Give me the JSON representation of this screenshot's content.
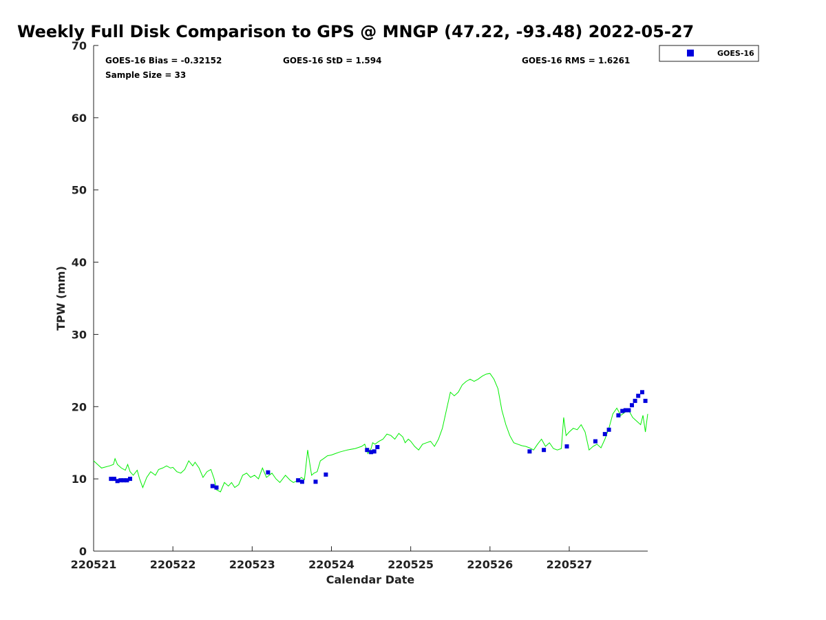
{
  "chart_data": {
    "type": "scatter",
    "title": "Weekly Full Disk Comparison to GPS @ MNGP (47.22, -93.48) 2022-05-27",
    "xlabel": "Calendar Date",
    "ylabel": "TPW (mm)",
    "xlim": [
      0,
      7
    ],
    "ylim": [
      0,
      70
    ],
    "y_ticks": [
      0,
      10,
      20,
      30,
      40,
      50,
      60,
      70
    ],
    "x_ticks": [
      {
        "value": 0,
        "label": "220521"
      },
      {
        "value": 1,
        "label": "220522"
      },
      {
        "value": 2,
        "label": "220523"
      },
      {
        "value": 3,
        "label": "220524"
      },
      {
        "value": 4,
        "label": "220525"
      },
      {
        "value": 5,
        "label": "220526"
      },
      {
        "value": 6,
        "label": "220527"
      }
    ],
    "stats": {
      "bias": "GOES-16 Bias = -0.32152",
      "std": "GOES-16 StD = 1.594",
      "rms": "GOES-16 RMS = 1.6261",
      "sample_size": "Sample Size = 33"
    },
    "legend": [
      {
        "name": "GOES-16",
        "color": "#0000dd",
        "marker": "square"
      }
    ],
    "legend_position": "outside top-right",
    "series": [
      {
        "name": "GPS",
        "kind": "line",
        "color": "#00ee00",
        "x": [
          0,
          0.05,
          0.1,
          0.2,
          0.25,
          0.27,
          0.3,
          0.35,
          0.4,
          0.43,
          0.46,
          0.5,
          0.55,
          0.58,
          0.62,
          0.67,
          0.72,
          0.78,
          0.82,
          0.87,
          0.92,
          0.97,
          1.0,
          1.05,
          1.1,
          1.15,
          1.2,
          1.25,
          1.28,
          1.33,
          1.38,
          1.43,
          1.48,
          1.52,
          1.55,
          1.6,
          1.65,
          1.7,
          1.74,
          1.78,
          1.83,
          1.88,
          1.93,
          1.98,
          2.03,
          2.08,
          2.13,
          2.18,
          2.25,
          2.3,
          2.35,
          2.42,
          2.48,
          2.52,
          2.58,
          2.62,
          2.66,
          2.7,
          2.75,
          2.78,
          2.82,
          2.86,
          2.9,
          2.95,
          3.0,
          3.05,
          3.1,
          3.2,
          3.3,
          3.38,
          3.42,
          3.46,
          3.5,
          3.52,
          3.55,
          3.6,
          3.65,
          3.7,
          3.75,
          3.8,
          3.85,
          3.9,
          3.93,
          3.97,
          4.0,
          4.05,
          4.1,
          4.15,
          4.2,
          4.25,
          4.3,
          4.35,
          4.4,
          4.45,
          4.5,
          4.55,
          4.6,
          4.65,
          4.7,
          4.75,
          4.8,
          4.85,
          4.9,
          4.95,
          5.0,
          5.05,
          5.1,
          5.15,
          5.2,
          5.25,
          5.3,
          5.35,
          5.4,
          5.45,
          5.5,
          5.55,
          5.6,
          5.65,
          5.7,
          5.75,
          5.8,
          5.85,
          5.9,
          5.93,
          5.96,
          6.0,
          6.05,
          6.1,
          6.15,
          6.2,
          6.25,
          6.3,
          6.35,
          6.4,
          6.45,
          6.5,
          6.55,
          6.6,
          6.65,
          6.7,
          6.75,
          6.8,
          6.85,
          6.9,
          6.93,
          6.96,
          6.99
        ],
        "y": [
          12.5,
          12.0,
          11.5,
          11.8,
          12.0,
          12.8,
          12.0,
          11.5,
          11.2,
          12.0,
          11.0,
          10.5,
          11.2,
          10.0,
          8.8,
          10.2,
          11.0,
          10.5,
          11.3,
          11.5,
          11.8,
          11.5,
          11.6,
          11.0,
          10.8,
          11.3,
          12.5,
          11.8,
          12.3,
          11.5,
          10.2,
          11.0,
          11.3,
          10.0,
          8.5,
          8.2,
          9.5,
          9.0,
          9.5,
          8.8,
          9.2,
          10.5,
          10.8,
          10.2,
          10.5,
          10.0,
          11.5,
          10.2,
          10.8,
          10.0,
          9.5,
          10.5,
          9.8,
          9.5,
          9.8,
          10.2,
          9.9,
          14.0,
          10.5,
          10.8,
          11.0,
          12.5,
          12.8,
          13.2,
          13.3,
          13.5,
          13.7,
          14.0,
          14.2,
          14.5,
          14.8,
          13.5,
          14.2,
          15.0,
          14.8,
          15.2,
          15.5,
          16.2,
          16.0,
          15.5,
          16.3,
          15.8,
          15.0,
          15.5,
          15.2,
          14.5,
          14.0,
          14.8,
          15.0,
          15.2,
          14.5,
          15.5,
          17.0,
          19.5,
          22.0,
          21.5,
          22.0,
          23.0,
          23.5,
          23.8,
          23.5,
          23.8,
          24.2,
          24.5,
          24.6,
          23.8,
          22.5,
          19.5,
          17.5,
          16.0,
          15.0,
          14.8,
          14.6,
          14.5,
          14.3,
          14.0,
          14.8,
          15.5,
          14.5,
          15.0,
          14.2,
          14.0,
          14.2,
          18.5,
          16.0,
          16.5,
          17.0,
          16.8,
          17.5,
          16.5,
          14.0,
          14.5,
          14.8,
          14.3,
          15.5,
          17.0,
          19.0,
          19.8,
          18.8,
          19.2,
          19.5,
          18.5,
          18.0,
          17.5,
          18.8,
          16.5,
          19.0
        ]
      },
      {
        "name": "GOES-16",
        "kind": "scatter",
        "color": "#0000dd",
        "x": [
          0.22,
          0.26,
          0.3,
          0.34,
          0.38,
          0.42,
          0.46,
          1.5,
          1.55,
          2.2,
          2.58,
          2.63,
          2.8,
          2.93,
          3.45,
          3.5,
          3.54,
          3.58,
          5.5,
          5.68,
          5.97,
          6.33,
          6.45,
          6.5,
          6.62,
          6.67,
          6.71,
          6.75,
          6.79,
          6.83,
          6.87,
          6.92,
          6.96
        ],
        "y": [
          10.0,
          10.0,
          9.7,
          9.8,
          9.8,
          9.8,
          10.0,
          9.0,
          8.8,
          10.9,
          9.8,
          9.6,
          9.6,
          10.6,
          14.0,
          13.7,
          13.8,
          14.4,
          13.8,
          14.0,
          14.5,
          15.2,
          16.2,
          16.8,
          18.8,
          19.4,
          19.5,
          19.5,
          20.2,
          20.8,
          21.5,
          22.0,
          20.8
        ]
      }
    ]
  }
}
